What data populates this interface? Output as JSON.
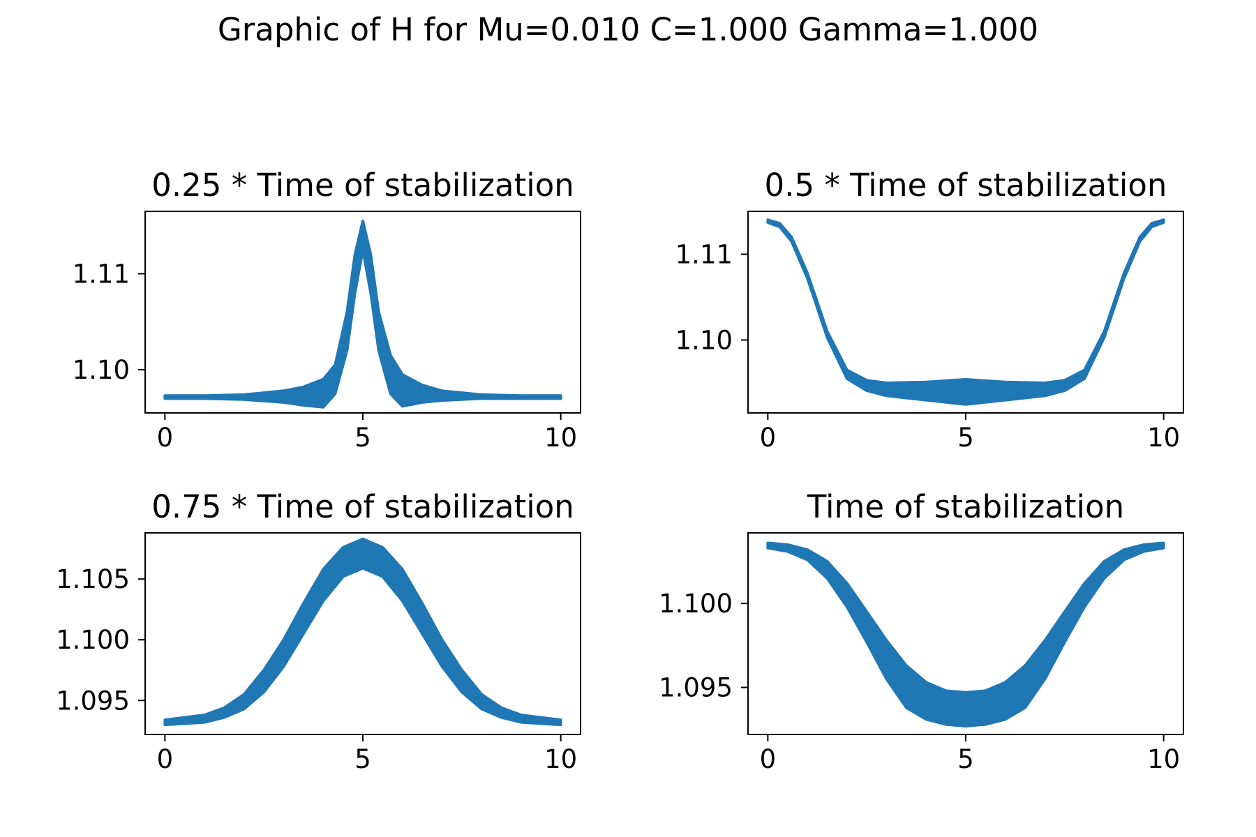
{
  "figure": {
    "title": "Graphic of H for Mu=0.010 C=1.000 Gamma=1.000",
    "line_color": "#1f77b4"
  },
  "chart_data": [
    {
      "type": "area",
      "title": "0.25 *  Time of stabilization",
      "xlabel": "",
      "ylabel": "",
      "xlim": [
        -0.5,
        10.5
      ],
      "ylim": [
        1.0955,
        1.1165
      ],
      "xticks": [
        0,
        5,
        10
      ],
      "yticks": [
        1.1,
        1.11
      ],
      "xtick_labels": [
        "0",
        "5",
        "10"
      ],
      "ytick_labels": [
        "1.10",
        "1.11"
      ],
      "grid": false,
      "x": [
        0,
        1,
        2,
        3,
        3.5,
        4,
        4.3,
        4.6,
        4.8,
        5,
        5.2,
        5.4,
        5.7,
        6,
        6.5,
        7,
        8,
        9,
        10
      ],
      "upper": [
        1.0973,
        1.0973,
        1.0974,
        1.0978,
        1.0982,
        1.099,
        1.1005,
        1.106,
        1.112,
        1.1155,
        1.112,
        1.106,
        1.1015,
        1.0995,
        1.0984,
        1.0978,
        1.0974,
        1.0973,
        1.0973
      ],
      "lower": [
        1.097,
        1.097,
        1.0969,
        1.0966,
        1.0963,
        1.0961,
        1.0975,
        1.102,
        1.108,
        1.1125,
        1.108,
        1.102,
        1.0975,
        1.0962,
        1.0966,
        1.0968,
        1.097,
        1.097,
        1.097
      ]
    },
    {
      "type": "area",
      "title": "0.5 *  Time of stabilization",
      "xlabel": "",
      "ylabel": "",
      "xlim": [
        -0.5,
        10.5
      ],
      "ylim": [
        1.0915,
        1.115
      ],
      "xticks": [
        0,
        5,
        10
      ],
      "yticks": [
        1.1,
        1.11
      ],
      "xtick_labels": [
        "0",
        "5",
        "10"
      ],
      "ytick_labels": [
        "1.10",
        "1.11"
      ],
      "grid": false,
      "x": [
        0,
        0.3,
        0.6,
        1,
        1.5,
        2,
        2.5,
        3,
        4,
        5,
        6,
        7,
        7.5,
        8,
        8.5,
        9,
        9.4,
        9.7,
        10
      ],
      "upper": [
        1.114,
        1.1136,
        1.112,
        1.1078,
        1.101,
        1.0965,
        1.0953,
        1.095,
        1.0951,
        1.0954,
        1.0951,
        1.095,
        1.0953,
        1.0965,
        1.101,
        1.1078,
        1.112,
        1.1136,
        1.114
      ],
      "lower": [
        1.1137,
        1.1132,
        1.1115,
        1.1072,
        1.1003,
        1.0955,
        1.0941,
        1.0935,
        1.093,
        1.0925,
        1.093,
        1.0935,
        1.0941,
        1.0955,
        1.1003,
        1.1072,
        1.1115,
        1.1132,
        1.1137
      ]
    },
    {
      "type": "area",
      "title": "0.75 *  Time of stabilization",
      "xlabel": "",
      "ylabel": "",
      "xlim": [
        -0.5,
        10.5
      ],
      "ylim": [
        1.0922,
        1.1088
      ],
      "xticks": [
        0,
        5,
        10
      ],
      "yticks": [
        1.095,
        1.1,
        1.105
      ],
      "xtick_labels": [
        "0",
        "5",
        "10"
      ],
      "ytick_labels": [
        "1.095",
        "1.100",
        "1.105"
      ],
      "grid": false,
      "x": [
        0,
        1,
        1.5,
        2,
        2.5,
        3,
        3.5,
        4,
        4.5,
        5,
        5.5,
        6,
        6.5,
        7,
        7.5,
        8,
        8.5,
        9,
        10
      ],
      "upper": [
        1.0934,
        1.0938,
        1.0944,
        1.0955,
        1.0975,
        1.1,
        1.103,
        1.1058,
        1.1076,
        1.1083,
        1.1076,
        1.1058,
        1.103,
        1.1,
        1.0975,
        1.0955,
        1.0944,
        1.0938,
        1.0934
      ],
      "lower": [
        1.093,
        1.0932,
        1.0936,
        1.0943,
        1.0957,
        1.0978,
        1.1005,
        1.1032,
        1.1052,
        1.1059,
        1.1052,
        1.1032,
        1.1005,
        1.0978,
        1.0957,
        1.0943,
        1.0936,
        1.0932,
        1.093
      ]
    },
    {
      "type": "area",
      "title": "Time of stabilization",
      "xlabel": "",
      "ylabel": "",
      "xlim": [
        -0.5,
        10.5
      ],
      "ylim": [
        1.0922,
        1.1042
      ],
      "xticks": [
        0,
        5,
        10
      ],
      "yticks": [
        1.095,
        1.1
      ],
      "xtick_labels": [
        "0",
        "5",
        "10"
      ],
      "ytick_labels": [
        "1.095",
        "1.100"
      ],
      "grid": false,
      "x": [
        0,
        0.5,
        1,
        1.5,
        2,
        2.5,
        3,
        3.5,
        4,
        4.5,
        5,
        5.5,
        6,
        6.5,
        7,
        7.5,
        8,
        8.5,
        9,
        9.5,
        10
      ],
      "upper": [
        1.1036,
        1.1035,
        1.1032,
        1.1025,
        1.1012,
        1.0995,
        1.0978,
        1.0963,
        1.0953,
        1.0948,
        1.0947,
        1.0948,
        1.0953,
        1.0963,
        1.0978,
        1.0995,
        1.1012,
        1.1025,
        1.1032,
        1.1035,
        1.1036
      ],
      "lower": [
        1.1033,
        1.1031,
        1.1026,
        1.1015,
        1.0998,
        1.0977,
        1.0955,
        1.0938,
        1.0931,
        1.0928,
        1.0927,
        1.0928,
        1.0931,
        1.0938,
        1.0955,
        1.0977,
        1.0998,
        1.1015,
        1.1026,
        1.1031,
        1.1033
      ]
    }
  ]
}
